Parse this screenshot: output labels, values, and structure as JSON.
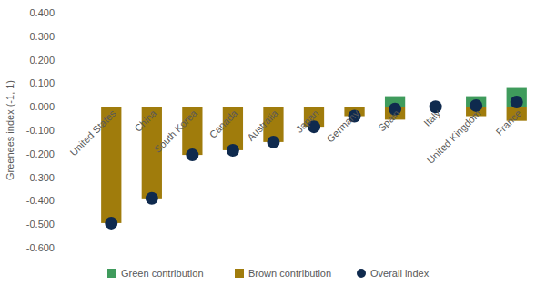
{
  "chart_data": {
    "type": "bar",
    "stacked": true,
    "grid": false,
    "legend": "bottom",
    "y_label": "Greenees index (-1, 1)",
    "categories": [
      "United States",
      "China",
      "South Korea",
      "Canada",
      "Australia",
      "Japan",
      "Germany",
      "Spain",
      "Italy",
      "United Kingdom",
      "France"
    ],
    "series": [
      {
        "name": "Green contribution",
        "type": "bar",
        "color": "#3f9b5c",
        "values": [
          0,
          0,
          0,
          0,
          0,
          0,
          0,
          0.045,
          0,
          0.045,
          0.08
        ]
      },
      {
        "name": "Brown contribution",
        "type": "bar",
        "color": "#a07c0c",
        "values": [
          -0.495,
          -0.39,
          -0.205,
          -0.185,
          -0.15,
          -0.085,
          -0.04,
          -0.055,
          0,
          -0.04,
          -0.06
        ]
      },
      {
        "name": "Overall index",
        "type": "scatter",
        "marker": "circle",
        "color": "#0f2a4e",
        "values": [
          -0.495,
          -0.39,
          -0.205,
          -0.185,
          -0.15,
          -0.085,
          -0.04,
          -0.01,
          0,
          0.005,
          0.02
        ]
      }
    ],
    "ylim": [
      -0.6,
      0.4
    ],
    "yticks": [
      {
        "value": 0.4,
        "label": "0.400"
      },
      {
        "value": 0.3,
        "label": "0.300"
      },
      {
        "value": 0.2,
        "label": "0.200"
      },
      {
        "value": 0.1,
        "label": "0.100"
      },
      {
        "value": 0,
        "label": "0.000"
      },
      {
        "value": -0.1,
        "label": "-0.100"
      },
      {
        "value": -0.2,
        "label": "-0.200"
      },
      {
        "value": -0.3,
        "label": "-0.300"
      },
      {
        "value": -0.4,
        "label": "-0.400"
      },
      {
        "value": -0.5,
        "label": "-0.500"
      },
      {
        "value": -0.6,
        "label": "-0.600"
      }
    ]
  }
}
